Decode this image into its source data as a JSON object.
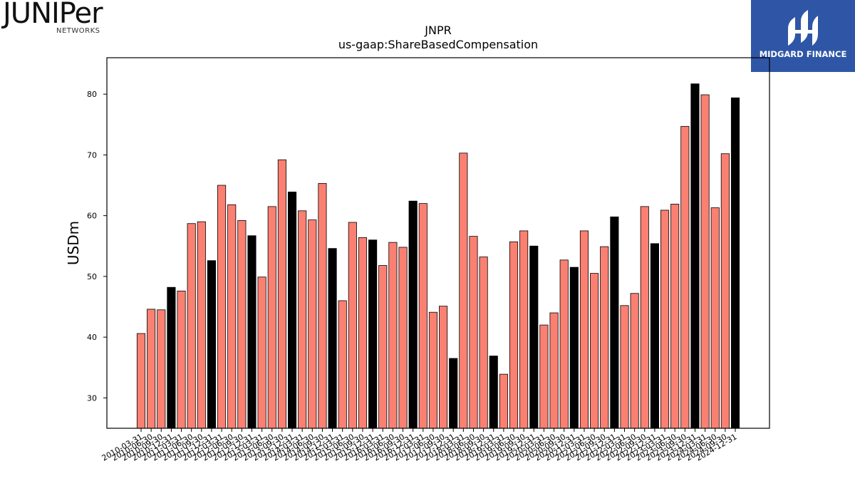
{
  "logos": {
    "left": {
      "word": "JUNIPer",
      "sub": "NETWORKS"
    },
    "right": {
      "brand": "MIDGARD FINANCE"
    }
  },
  "chart_data": {
    "type": "bar",
    "title": "JNPR",
    "subtitle": "us-gaap:ShareBasedCompensation",
    "xlabel": "",
    "ylabel": "USDm",
    "ylim": [
      25,
      86
    ],
    "yticks": [
      30,
      40,
      50,
      60,
      70,
      80
    ],
    "grid": false,
    "colors": {
      "quarter": "#fa8072",
      "annual": "#000000",
      "edge": "#000000"
    },
    "categories": [
      "2010-03-31",
      "2010-06-30",
      "2010-09-30",
      "2010-12-31",
      "2011-03-31",
      "2011-06-30",
      "2011-09-30",
      "2011-12-31",
      "2012-03-31",
      "2012-06-30",
      "2012-09-30",
      "2012-12-31",
      "2013-03-31",
      "2013-06-30",
      "2013-09-30",
      "2013-12-31",
      "2014-03-31",
      "2014-06-30",
      "2014-09-30",
      "2014-12-31",
      "2015-03-31",
      "2015-06-30",
      "2015-09-30",
      "2015-12-31",
      "2016-03-31",
      "2016-06-30",
      "2016-09-30",
      "2016-12-31",
      "2017-03-31",
      "2017-06-30",
      "2017-09-30",
      "2017-12-31",
      "2018-03-31",
      "2018-06-30",
      "2018-09-30",
      "2018-12-31",
      "2019-03-31",
      "2019-06-30",
      "2019-09-30",
      "2019-12-31",
      "2020-03-31",
      "2020-06-30",
      "2020-09-30",
      "2020-12-31",
      "2021-03-31",
      "2021-06-30",
      "2021-09-30",
      "2021-12-31",
      "2022-03-31",
      "2022-06-30",
      "2022-09-30",
      "2022-12-31",
      "2023-03-31",
      "2023-06-30",
      "2023-09-30",
      "2023-12-31",
      "2024-03-31",
      "2024-06-30",
      "2024-09-30",
      "2024-12-31"
    ],
    "values": [
      40.6,
      44.6,
      44.5,
      48.2,
      47.6,
      58.7,
      59.0,
      52.6,
      65.0,
      61.8,
      59.2,
      56.7,
      49.9,
      61.5,
      69.2,
      63.9,
      60.8,
      59.3,
      65.3,
      54.6,
      46.0,
      58.9,
      56.4,
      56.0,
      51.8,
      55.6,
      54.8,
      62.4,
      62.0,
      44.1,
      45.1,
      36.5,
      70.3,
      56.6,
      53.2,
      36.9,
      33.9,
      55.7,
      57.5,
      55.0,
      42.0,
      44.0,
      52.7,
      51.5,
      57.5,
      50.5,
      54.9,
      59.8,
      45.2,
      47.2,
      61.5,
      55.4,
      60.9,
      61.9,
      74.7,
      81.7,
      79.9,
      61.3,
      70.2,
      79.4
    ],
    "annual": [
      false,
      false,
      false,
      true,
      false,
      false,
      false,
      true,
      false,
      false,
      false,
      true,
      false,
      false,
      false,
      true,
      false,
      false,
      false,
      true,
      false,
      false,
      false,
      true,
      false,
      false,
      false,
      true,
      false,
      false,
      false,
      true,
      false,
      false,
      false,
      true,
      false,
      false,
      false,
      true,
      false,
      false,
      false,
      true,
      false,
      false,
      false,
      true,
      false,
      false,
      false,
      true,
      false,
      false,
      false,
      true,
      false,
      false,
      false,
      true
    ]
  }
}
